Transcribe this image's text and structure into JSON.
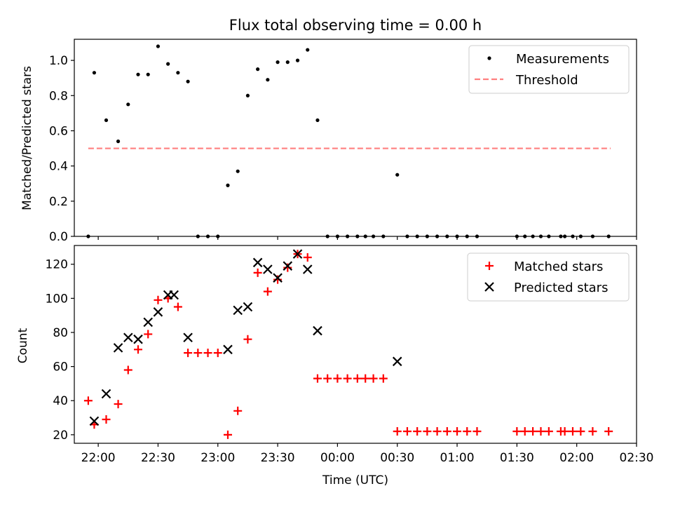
{
  "chart_data": [
    {
      "type": "scatter",
      "title": "Flux total observing time = 0.00 h",
      "xlabel": "",
      "ylabel": "Matched/Predicted stars",
      "xlim": [
        "21:48",
        "02:30"
      ],
      "ylim": [
        0,
        1.12
      ],
      "yticks": [
        0.0,
        0.2,
        0.4,
        0.6,
        0.8,
        1.0
      ],
      "ytick_labels": [
        "0.0",
        "0.2",
        "0.4",
        "0.6",
        "0.8",
        "1.0"
      ],
      "legend_position": "top-right",
      "threshold": {
        "name": "Threshold",
        "value": 0.5,
        "x_start": "21:55",
        "x_end": "02:17",
        "color": "#ff7f7f"
      },
      "series": [
        {
          "name": "Measurements",
          "color": "#000000",
          "x": [
            "21:55",
            "21:58",
            "22:04",
            "22:10",
            "22:15",
            "22:20",
            "22:25",
            "22:30",
            "22:35",
            "22:40",
            "22:45",
            "22:50",
            "22:55",
            "23:00",
            "23:05",
            "23:10",
            "23:15",
            "23:20",
            "23:25",
            "23:30",
            "23:35",
            "23:40",
            "23:45",
            "23:50",
            "23:55",
            "00:00",
            "00:05",
            "00:10",
            "00:14",
            "00:18",
            "00:23",
            "00:30",
            "00:35",
            "00:40",
            "00:45",
            "00:50",
            "00:55",
            "01:00",
            "01:05",
            "01:10",
            "01:30",
            "01:34",
            "01:38",
            "01:42",
            "01:46",
            "01:52",
            "01:54",
            "01:58",
            "02:02",
            "02:08",
            "02:16"
          ],
          "y": [
            0.0,
            0.93,
            0.66,
            0.54,
            0.75,
            0.92,
            0.92,
            1.08,
            0.98,
            0.93,
            0.88,
            0.0,
            0.0,
            0.0,
            0.29,
            0.37,
            0.8,
            0.95,
            0.89,
            0.99,
            0.99,
            1.0,
            1.06,
            0.66,
            0.0,
            0.0,
            0.0,
            0.0,
            0.0,
            0.0,
            0.0,
            0.35,
            0.0,
            0.0,
            0.0,
            0.0,
            0.0,
            0.0,
            0.0,
            0.0,
            0.0,
            0.0,
            0.0,
            0.0,
            0.0,
            0.0,
            0.0,
            0.0,
            0.0,
            0.0,
            0.0
          ]
        }
      ]
    },
    {
      "type": "scatter",
      "title": "",
      "xlabel": "Time (UTC)",
      "ylabel": "Count",
      "xlim": [
        "21:48",
        "02:30"
      ],
      "ylim": [
        15,
        131
      ],
      "yticks": [
        20,
        40,
        60,
        80,
        100,
        120
      ],
      "ytick_labels": [
        "20",
        "40",
        "60",
        "80",
        "100",
        "120"
      ],
      "xticks": [
        "22:00",
        "22:30",
        "23:00",
        "23:30",
        "00:00",
        "00:30",
        "01:00",
        "01:30",
        "02:00",
        "02:30"
      ],
      "xtick_labels": [
        "22:00",
        "22:30",
        "23:00",
        "23:30",
        "00:00",
        "00:30",
        "01:00",
        "01:30",
        "02:00",
        "02:30"
      ],
      "legend_position": "top-right",
      "series": [
        {
          "name": "Matched stars",
          "marker": "plus",
          "color": "#ff0000",
          "x": [
            "21:55",
            "21:58",
            "22:04",
            "22:10",
            "22:15",
            "22:20",
            "22:25",
            "22:30",
            "22:35",
            "22:40",
            "22:45",
            "22:50",
            "22:55",
            "23:00",
            "23:05",
            "23:10",
            "23:15",
            "23:20",
            "23:25",
            "23:30",
            "23:35",
            "23:40",
            "23:45",
            "23:50",
            "23:55",
            "00:00",
            "00:05",
            "00:10",
            "00:14",
            "00:18",
            "00:23",
            "00:30",
            "00:35",
            "00:40",
            "00:45",
            "00:50",
            "00:55",
            "01:00",
            "01:05",
            "01:10",
            "01:30",
            "01:34",
            "01:38",
            "01:42",
            "01:46",
            "01:52",
            "01:54",
            "01:58",
            "02:02",
            "02:08",
            "02:16"
          ],
          "y": [
            40,
            26,
            29,
            38,
            58,
            70,
            79,
            99,
            100,
            95,
            68,
            68,
            68,
            68,
            20,
            34,
            76,
            115,
            104,
            111,
            118,
            126,
            124,
            53,
            53,
            53,
            53,
            53,
            53,
            53,
            53,
            22,
            22,
            22,
            22,
            22,
            22,
            22,
            22,
            22,
            22,
            22,
            22,
            22,
            22,
            22,
            22,
            22,
            22,
            22,
            22
          ]
        },
        {
          "name": "Predicted stars",
          "marker": "x",
          "color": "#000000",
          "x": [
            "21:58",
            "22:04",
            "22:10",
            "22:15",
            "22:20",
            "22:25",
            "22:30",
            "22:35",
            "22:38",
            "22:45",
            "23:05",
            "23:10",
            "23:15",
            "23:20",
            "23:25",
            "23:30",
            "23:35",
            "23:40",
            "23:45",
            "23:50",
            "00:30"
          ],
          "y": [
            28,
            44,
            71,
            77,
            76,
            86,
            92,
            102,
            102,
            77,
            70,
            93,
            95,
            121,
            117,
            112,
            119,
            126,
            117,
            81,
            63
          ]
        }
      ]
    }
  ]
}
